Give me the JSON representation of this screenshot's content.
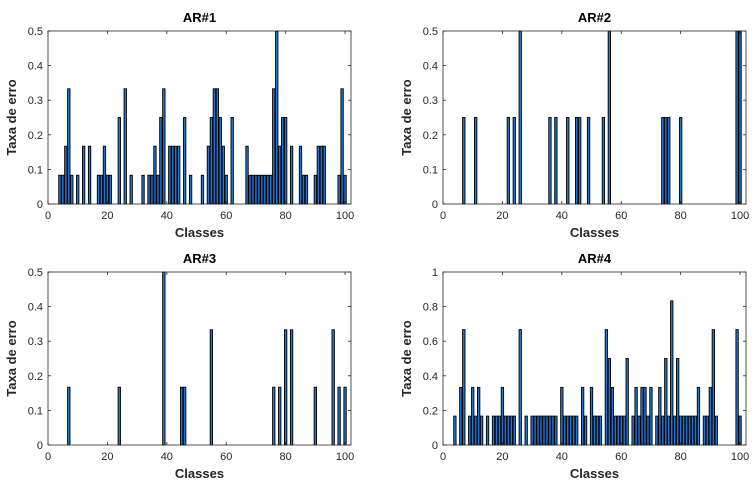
{
  "chart_data": [
    {
      "type": "bar",
      "title": "AR#1",
      "xlabel": "Classes",
      "ylabel": "Taxa de erro",
      "xlim": [
        0,
        102
      ],
      "ylim": [
        0,
        0.5
      ],
      "xticks": [
        0,
        20,
        40,
        60,
        80,
        100
      ],
      "yticks": [
        0,
        0.1,
        0.2,
        0.3,
        0.4,
        0.5
      ],
      "color": "#1f77d4",
      "x": [
        4,
        5,
        6,
        7,
        8,
        10,
        12,
        14,
        17,
        18,
        19,
        20,
        21,
        24,
        26,
        28,
        32,
        34,
        35,
        36,
        37,
        38,
        39,
        41,
        42,
        43,
        44,
        46,
        48,
        52,
        54,
        55,
        56,
        57,
        58,
        59,
        60,
        62,
        67,
        68,
        69,
        70,
        71,
        72,
        73,
        74,
        75,
        76,
        77,
        78,
        79,
        80,
        82,
        85,
        86,
        87,
        90,
        91,
        92,
        93,
        98,
        99,
        100
      ],
      "values": [
        0.083,
        0.083,
        0.167,
        0.333,
        0.083,
        0.083,
        0.167,
        0.167,
        0.083,
        0.083,
        0.167,
        0.083,
        0.083,
        0.25,
        0.333,
        0.083,
        0.083,
        0.083,
        0.083,
        0.167,
        0.083,
        0.25,
        0.333,
        0.167,
        0.167,
        0.167,
        0.167,
        0.25,
        0.083,
        0.083,
        0.167,
        0.25,
        0.333,
        0.333,
        0.25,
        0.167,
        0.083,
        0.25,
        0.167,
        0.083,
        0.083,
        0.083,
        0.083,
        0.083,
        0.083,
        0.083,
        0.083,
        0.333,
        0.5,
        0.167,
        0.25,
        0.25,
        0.167,
        0.167,
        0.083,
        0.083,
        0.083,
        0.167,
        0.167,
        0.167,
        0.083,
        0.333,
        0.083
      ]
    },
    {
      "type": "bar",
      "title": "AR#2",
      "xlabel": "Classes",
      "ylabel": "Taxa de erro",
      "xlim": [
        0,
        102
      ],
      "ylim": [
        0,
        0.5
      ],
      "xticks": [
        0,
        20,
        40,
        60,
        80,
        100
      ],
      "yticks": [
        0,
        0.1,
        0.2,
        0.3,
        0.4,
        0.5
      ],
      "color": "#1f77d4",
      "x": [
        7,
        11,
        22,
        24,
        26,
        36,
        38,
        42,
        45,
        46,
        49,
        54,
        56,
        74,
        75,
        76,
        80,
        99,
        100
      ],
      "values": [
        0.25,
        0.25,
        0.25,
        0.25,
        0.5,
        0.25,
        0.25,
        0.25,
        0.25,
        0.25,
        0.25,
        0.25,
        0.5,
        0.25,
        0.25,
        0.25,
        0.25,
        0.5,
        0.5
      ]
    },
    {
      "type": "bar",
      "title": "AR#3",
      "xlabel": "Classes",
      "ylabel": "Taxa de erro",
      "xlim": [
        0,
        102
      ],
      "ylim": [
        0,
        0.5
      ],
      "xticks": [
        0,
        20,
        40,
        60,
        80,
        100
      ],
      "yticks": [
        0,
        0.1,
        0.2,
        0.3,
        0.4,
        0.5
      ],
      "color": "#1f77d4",
      "x": [
        7,
        24,
        39,
        45,
        46,
        55,
        76,
        78,
        80,
        82,
        90,
        96,
        98,
        100
      ],
      "values": [
        0.167,
        0.167,
        0.5,
        0.167,
        0.167,
        0.333,
        0.167,
        0.167,
        0.333,
        0.333,
        0.167,
        0.333,
        0.167,
        0.167
      ]
    },
    {
      "type": "bar",
      "title": "AR#4",
      "xlabel": "Classes",
      "ylabel": "Taxa de erro",
      "xlim": [
        0,
        102
      ],
      "ylim": [
        0,
        1
      ],
      "xticks": [
        0,
        20,
        40,
        60,
        80,
        100
      ],
      "yticks": [
        0,
        0.2,
        0.4,
        0.6,
        0.8,
        1
      ],
      "color": "#1f77d4",
      "x": [
        4,
        6,
        7,
        9,
        10,
        11,
        12,
        13,
        15,
        17,
        18,
        19,
        20,
        21,
        22,
        23,
        24,
        26,
        28,
        30,
        31,
        32,
        33,
        34,
        35,
        36,
        37,
        38,
        40,
        41,
        42,
        43,
        44,
        45,
        47,
        48,
        50,
        51,
        52,
        53,
        55,
        56,
        57,
        58,
        59,
        60,
        61,
        62,
        64,
        65,
        66,
        67,
        68,
        69,
        70,
        72,
        73,
        74,
        75,
        76,
        77,
        78,
        79,
        80,
        81,
        82,
        83,
        84,
        85,
        86,
        88,
        89,
        90,
        91,
        92,
        99,
        100
      ],
      "values": [
        0.167,
        0.333,
        0.667,
        0.167,
        0.333,
        0.167,
        0.333,
        0.167,
        0.167,
        0.167,
        0.167,
        0.167,
        0.333,
        0.167,
        0.167,
        0.167,
        0.167,
        0.667,
        0.167,
        0.167,
        0.167,
        0.167,
        0.167,
        0.167,
        0.167,
        0.167,
        0.167,
        0.167,
        0.333,
        0.167,
        0.167,
        0.167,
        0.167,
        0.167,
        0.333,
        0.167,
        0.333,
        0.167,
        0.167,
        0.167,
        0.667,
        0.5,
        0.333,
        0.167,
        0.167,
        0.167,
        0.167,
        0.5,
        0.167,
        0.333,
        0.167,
        0.333,
        0.333,
        0.167,
        0.333,
        0.167,
        0.333,
        0.167,
        0.5,
        0.167,
        0.833,
        0.167,
        0.5,
        0.167,
        0.167,
        0.167,
        0.167,
        0.167,
        0.167,
        0.333,
        0.167,
        0.167,
        0.333,
        0.667,
        0.167,
        0.667,
        0.167
      ]
    }
  ]
}
